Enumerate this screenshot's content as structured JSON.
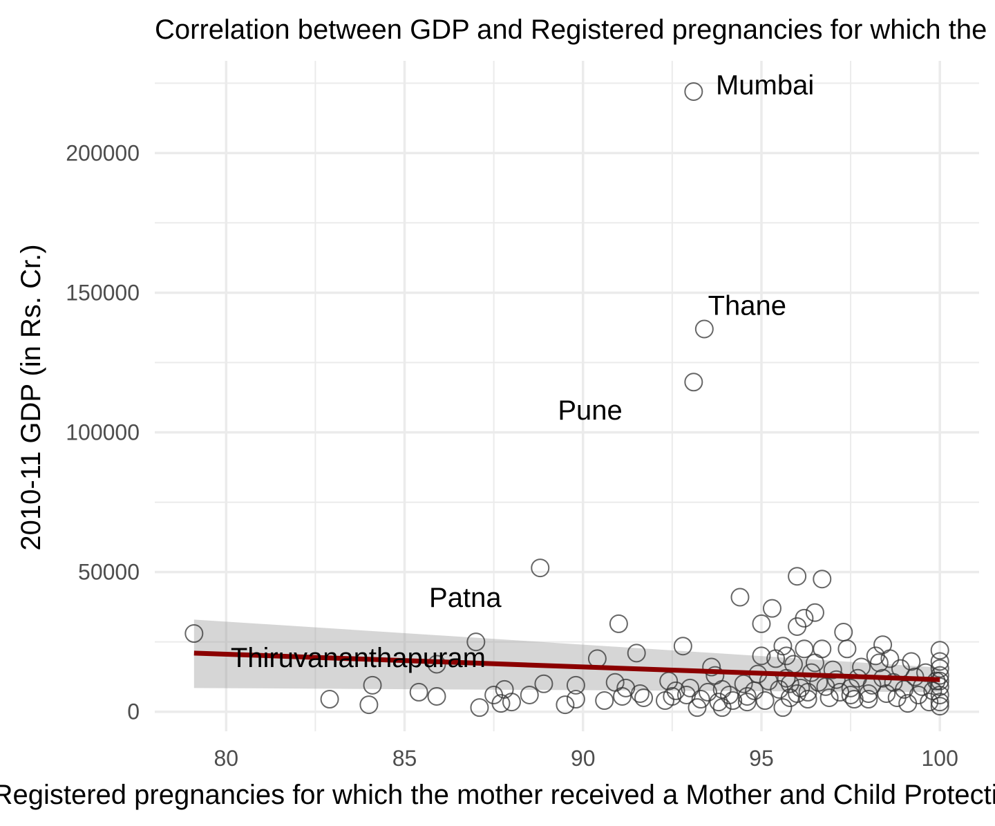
{
  "chart_data": {
    "type": "scatter",
    "title": "Correlation between GDP and Registered pregnancies for which the mother received a Mother and Child Protection card (%)",
    "xlabel": "Registered pregnancies for which the mother received a Mother and Child Protection card (%)",
    "ylabel": "2010-11 GDP (in Rs. Cr.)",
    "xlim": [
      78.0,
      101.1
    ],
    "ylim": [
      -7000,
      233000
    ],
    "x_ticks": [
      80,
      85,
      90,
      95,
      100
    ],
    "x_tick_labels": [
      "80",
      "85",
      "90",
      "95",
      "100"
    ],
    "y_ticks": [
      0,
      50000,
      100000,
      150000,
      200000
    ],
    "y_tick_labels": [
      "0",
      "50000",
      "100000",
      "150000",
      "200000"
    ],
    "grid": true,
    "theme": "minimal",
    "fit_line": {
      "method": "linear",
      "color": "#8b0000",
      "x": [
        79.1,
        100
      ],
      "y": [
        21000,
        11500
      ],
      "ci_upper": [
        33000,
        15800
      ],
      "ci_lower": [
        8500,
        7000
      ]
    },
    "labels": [
      {
        "text": "Mumbai",
        "x": 95.1,
        "y": 224500
      },
      {
        "text": "Thane",
        "x": 94.6,
        "y": 145500
      },
      {
        "text": "Pune",
        "x": 90.2,
        "y": 108000
      },
      {
        "text": "Patna",
        "x": 86.7,
        "y": 41000
      },
      {
        "text": "Thiruvananthapuram",
        "x": 83.7,
        "y": 19500
      }
    ],
    "points": [
      [
        93.1,
        222000
      ],
      [
        93.4,
        137000
      ],
      [
        93.1,
        118000
      ],
      [
        88.8,
        51500
      ],
      [
        79.1,
        28000
      ],
      [
        87.0,
        25000
      ],
      [
        85.9,
        17000
      ],
      [
        82.9,
        4500
      ],
      [
        84.0,
        2500
      ],
      [
        84.1,
        9500
      ],
      [
        85.4,
        7000
      ],
      [
        85.9,
        5500
      ],
      [
        87.1,
        1500
      ],
      [
        87.5,
        6000
      ],
      [
        87.7,
        3000
      ],
      [
        87.8,
        8000
      ],
      [
        88.0,
        3500
      ],
      [
        88.5,
        6000
      ],
      [
        88.9,
        10000
      ],
      [
        89.5,
        2500
      ],
      [
        89.8,
        4500
      ],
      [
        89.8,
        9500
      ],
      [
        90.4,
        19000
      ],
      [
        90.6,
        4000
      ],
      [
        91.0,
        31500
      ],
      [
        90.9,
        10500
      ],
      [
        91.1,
        5500
      ],
      [
        91.2,
        8500
      ],
      [
        91.5,
        21000
      ],
      [
        91.6,
        6500
      ],
      [
        91.7,
        5000
      ],
      [
        92.3,
        4000
      ],
      [
        92.4,
        11000
      ],
      [
        92.8,
        23500
      ],
      [
        92.6,
        7500
      ],
      [
        92.9,
        6000
      ],
      [
        93.0,
        8500
      ],
      [
        93.2,
        1500
      ],
      [
        93.3,
        4500
      ],
      [
        93.5,
        7000
      ],
      [
        93.6,
        16000
      ],
      [
        93.7,
        13000
      ],
      [
        93.8,
        3500
      ],
      [
        93.9,
        1500
      ],
      [
        94.1,
        6000
      ],
      [
        94.2,
        4000
      ],
      [
        94.4,
        41000
      ],
      [
        94.5,
        10000
      ],
      [
        94.6,
        5500
      ],
      [
        94.8,
        7500
      ],
      [
        94.9,
        13500
      ],
      [
        95.0,
        31500
      ],
      [
        95.0,
        20000
      ],
      [
        95.1,
        4000
      ],
      [
        95.2,
        11000
      ],
      [
        95.3,
        37000
      ],
      [
        95.4,
        19000
      ],
      [
        95.5,
        8000
      ],
      [
        95.6,
        23500
      ],
      [
        95.6,
        1500
      ],
      [
        95.7,
        20000
      ],
      [
        95.7,
        12000
      ],
      [
        95.8,
        5000
      ],
      [
        95.9,
        17000
      ],
      [
        96.0,
        48500
      ],
      [
        96.0,
        30500
      ],
      [
        96.1,
        8500
      ],
      [
        96.2,
        33500
      ],
      [
        96.2,
        22500
      ],
      [
        96.3,
        7000
      ],
      [
        96.3,
        4500
      ],
      [
        96.4,
        14000
      ],
      [
        96.5,
        35500
      ],
      [
        96.5,
        17500
      ],
      [
        96.6,
        10500
      ],
      [
        96.7,
        47500
      ],
      [
        96.7,
        22500
      ],
      [
        96.8,
        9000
      ],
      [
        96.9,
        5000
      ],
      [
        97.0,
        15000
      ],
      [
        97.1,
        11500
      ],
      [
        97.2,
        7000
      ],
      [
        97.3,
        28500
      ],
      [
        97.4,
        22500
      ],
      [
        97.5,
        8500
      ],
      [
        97.6,
        4500
      ],
      [
        97.7,
        12000
      ],
      [
        97.8,
        16000
      ],
      [
        98.0,
        6500
      ],
      [
        98.1,
        9500
      ],
      [
        98.2,
        20000
      ],
      [
        98.3,
        17500
      ],
      [
        98.4,
        24000
      ],
      [
        98.4,
        12000
      ],
      [
        98.5,
        6500
      ],
      [
        98.6,
        19000
      ],
      [
        98.7,
        10500
      ],
      [
        98.8,
        5000
      ],
      [
        98.9,
        15500
      ],
      [
        99.0,
        8000
      ],
      [
        99.1,
        3000
      ],
      [
        99.2,
        18000
      ],
      [
        99.3,
        12500
      ],
      [
        99.4,
        6000
      ],
      [
        99.5,
        9000
      ],
      [
        99.6,
        14000
      ],
      [
        99.7,
        3500
      ],
      [
        99.8,
        7500
      ],
      [
        99.9,
        11000
      ],
      [
        100.0,
        22000
      ],
      [
        100.0,
        18000
      ],
      [
        100.0,
        13000
      ],
      [
        100.0,
        9000
      ],
      [
        100.0,
        6000
      ],
      [
        100.0,
        3500
      ],
      [
        100.0,
        2000
      ],
      [
        100.0,
        15500
      ],
      [
        100.0,
        11000
      ],
      [
        98.0,
        4500
      ],
      [
        97.5,
        6000
      ],
      [
        96.0,
        6500
      ],
      [
        95.8,
        10000
      ],
      [
        94.6,
        3500
      ],
      [
        93.9,
        8000
      ],
      [
        92.5,
        5500
      ]
    ]
  }
}
